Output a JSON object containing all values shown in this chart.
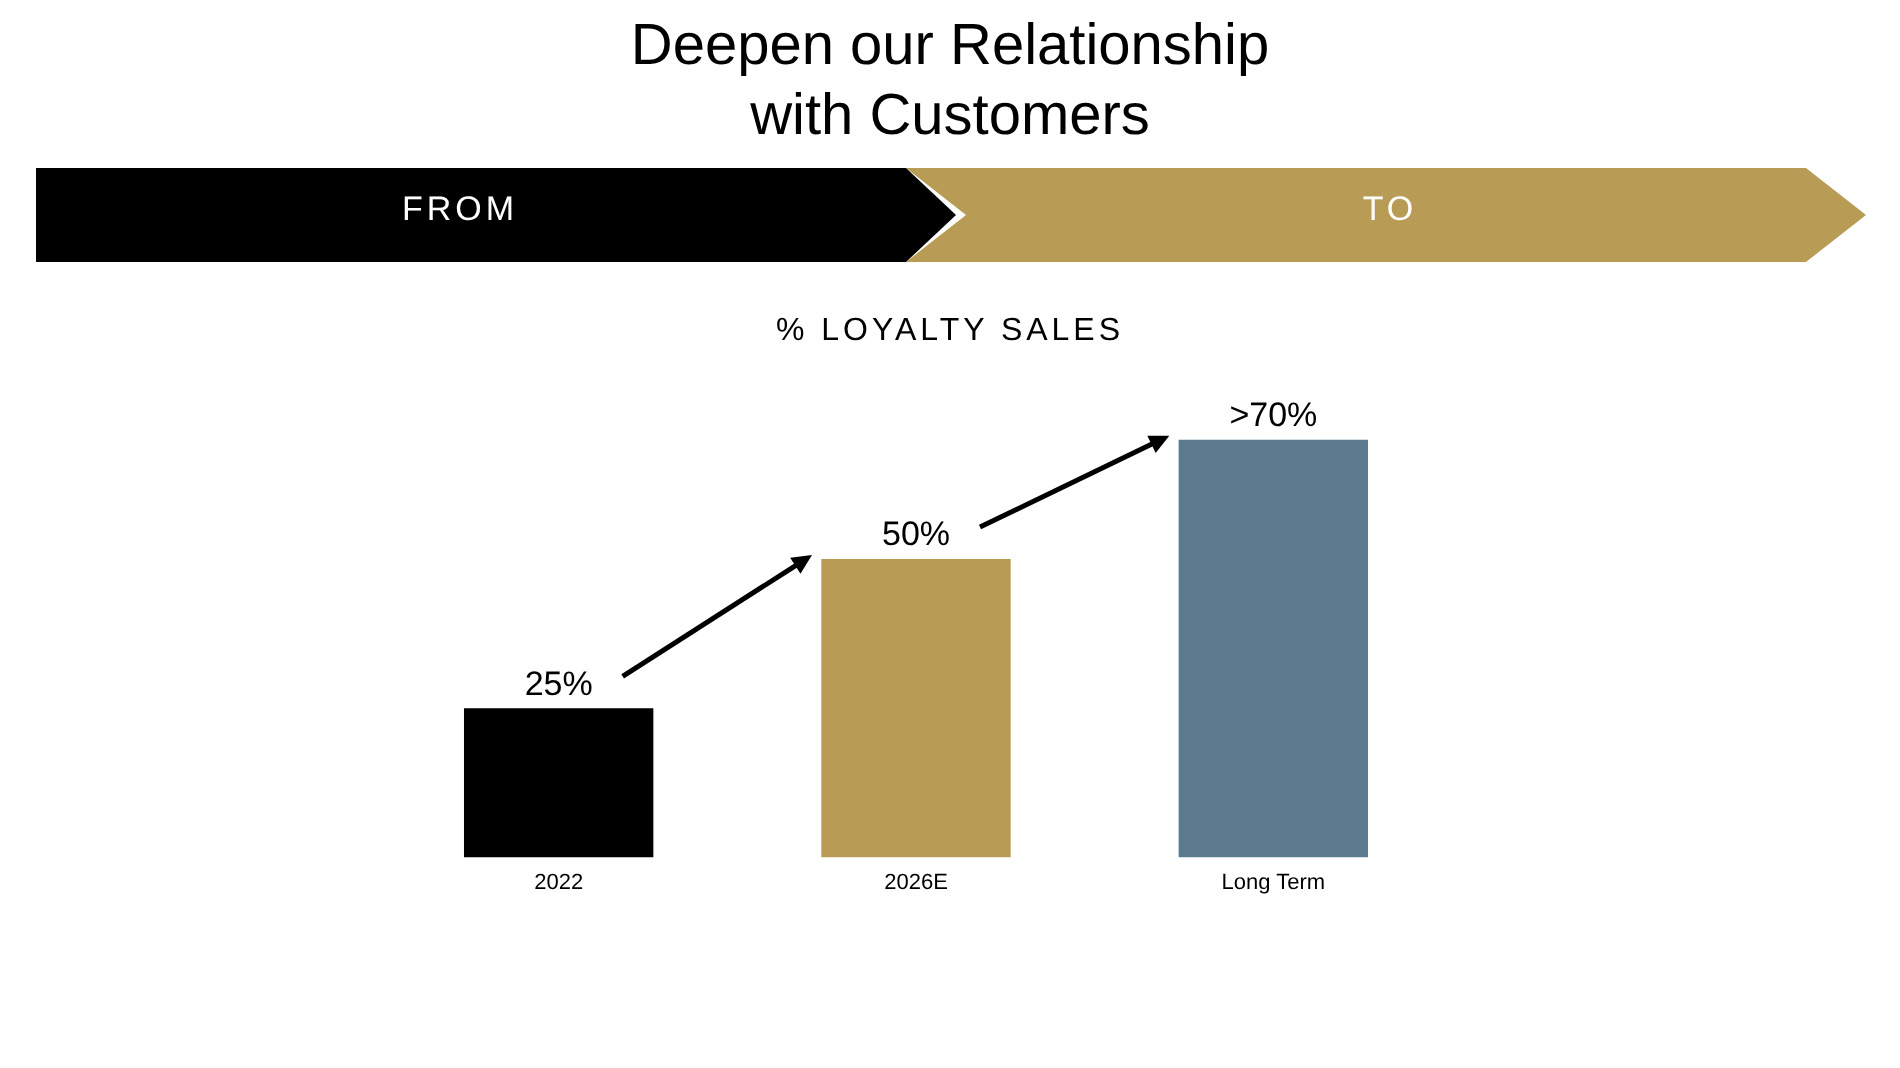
{
  "chart_data": {
    "type": "bar",
    "title": "Deepen our Relationship\nwith Customers",
    "subtitle": "% LOYALTY SALES",
    "annotations": [
      "FROM",
      "TO"
    ],
    "categories": [
      "2022",
      "2026E",
      "Long Term"
    ],
    "values": [
      25,
      50,
      70
    ],
    "colors": [
      "#000000",
      "#b89b54",
      "#5b7a8e"
    ],
    "value_labels": [
      "25%",
      "50%",
      ">70%"
    ],
    "grid": false,
    "legend": false
  }
}
